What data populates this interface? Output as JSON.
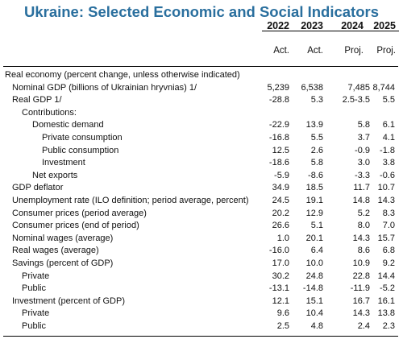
{
  "title": "Ukraine: Selected Economic and Social Indicators",
  "years": [
    "2022",
    "2023",
    "2024",
    "2025"
  ],
  "status": [
    "Act.",
    "Act.",
    "Proj.",
    "Proj."
  ],
  "rows": [
    {
      "label": "Real economy (percent change, unless otherwise indicated)",
      "indent": 0,
      "values": [
        "",
        "",
        "",
        ""
      ]
    },
    {
      "label": "Nominal GDP (billions of Ukrainian hryvnias) 1/",
      "indent": 1,
      "values": [
        "5,239",
        "6,538",
        "7,485",
        "8,744"
      ]
    },
    {
      "label": "Real GDP 1/",
      "indent": 1,
      "values": [
        "-28.8",
        "5.3",
        "2.5-3.5",
        "5.5"
      ]
    },
    {
      "label": "Contributions:",
      "indent": 2,
      "values": [
        "",
        "",
        "",
        ""
      ]
    },
    {
      "label": "Domestic demand",
      "indent": 3,
      "values": [
        "-22.9",
        "13.9",
        "5.8",
        "6.1"
      ]
    },
    {
      "label": "Private consumption",
      "indent": 4,
      "values": [
        "-16.8",
        "5.5",
        "3.7",
        "4.1"
      ]
    },
    {
      "label": "Public consumption",
      "indent": 4,
      "values": [
        "12.5",
        "2.6",
        "-0.9",
        "-1.8"
      ]
    },
    {
      "label": "Investment",
      "indent": 4,
      "values": [
        "-18.6",
        "5.8",
        "3.0",
        "3.8"
      ]
    },
    {
      "label": "Net exports",
      "indent": 3,
      "values": [
        "-5.9",
        "-8.6",
        "-3.3",
        "-0.6"
      ]
    },
    {
      "label": "GDP deflator",
      "indent": 1,
      "values": [
        "34.9",
        "18.5",
        "11.7",
        "10.7"
      ]
    },
    {
      "label": "Unemployment rate (ILO definition; period average, percent)",
      "indent": 1,
      "values": [
        "24.5",
        "19.1",
        "14.8",
        "14.3"
      ]
    },
    {
      "label": "Consumer prices (period average)",
      "indent": 1,
      "values": [
        "20.2",
        "12.9",
        "5.2",
        "8.3"
      ]
    },
    {
      "label": "Consumer prices (end of period)",
      "indent": 1,
      "values": [
        "26.6",
        "5.1",
        "8.0",
        "7.0"
      ]
    },
    {
      "label": "Nominal wages (average)",
      "indent": 1,
      "values": [
        "1.0",
        "20.1",
        "14.3",
        "15.7"
      ]
    },
    {
      "label": "Real wages (average)",
      "indent": 1,
      "values": [
        "-16.0",
        "6.4",
        "8.6",
        "6.8"
      ]
    },
    {
      "label": "Savings (percent of GDP)",
      "indent": 1,
      "values": [
        "17.0",
        "10.0",
        "10.9",
        "9.2"
      ]
    },
    {
      "label": "Private",
      "indent": 2,
      "values": [
        "30.2",
        "24.8",
        "22.8",
        "14.4"
      ]
    },
    {
      "label": "Public",
      "indent": 2,
      "values": [
        "-13.1",
        "-14.8",
        "-11.9",
        "-5.2"
      ]
    },
    {
      "label": "Investment (percent of GDP)",
      "indent": 1,
      "values": [
        "12.1",
        "15.1",
        "16.7",
        "16.1"
      ]
    },
    {
      "label": "Private",
      "indent": 2,
      "values": [
        "9.6",
        "10.4",
        "14.3",
        "13.8"
      ]
    },
    {
      "label": "Public",
      "indent": 2,
      "values": [
        "2.5",
        "4.8",
        "2.4",
        "2.3"
      ]
    }
  ]
}
